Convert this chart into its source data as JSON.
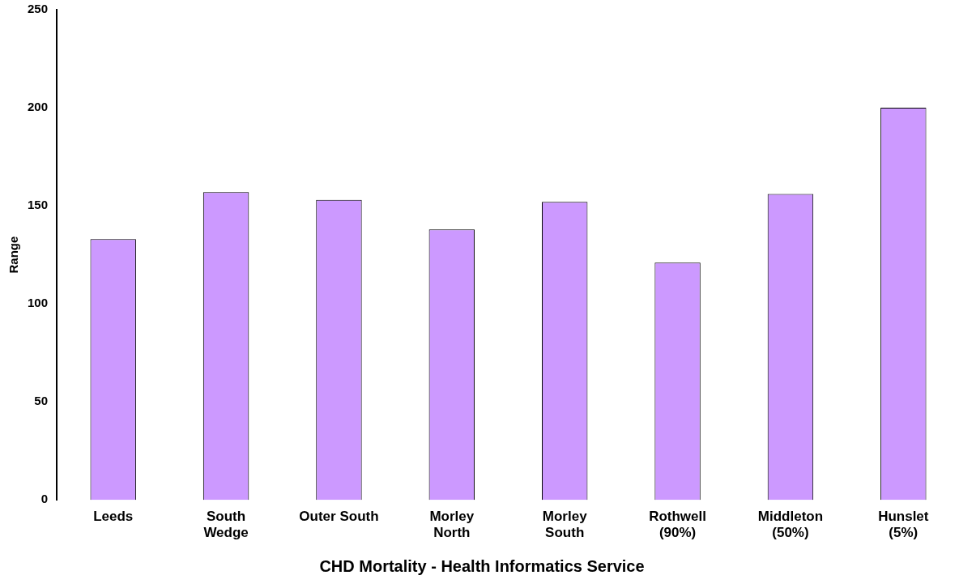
{
  "chart_data": {
    "type": "bar",
    "title": "CHD Mortality - Health Informatics Service",
    "ylabel": "Range",
    "categories": [
      "Leeds",
      "South\nWedge",
      "Outer South",
      "Morley\nNorth",
      "Morley\nSouth",
      "Rothwell\n(90%)",
      "Middleton\n(50%)",
      "Hunslet\n(5%)"
    ],
    "values": [
      133,
      157,
      153,
      138,
      152,
      121,
      156,
      200
    ],
    "color": "#cc99ff",
    "ylim": [
      0,
      250
    ],
    "yticks": [
      0,
      50,
      100,
      150,
      200,
      250
    ],
    "grid": false,
    "legend": false
  }
}
